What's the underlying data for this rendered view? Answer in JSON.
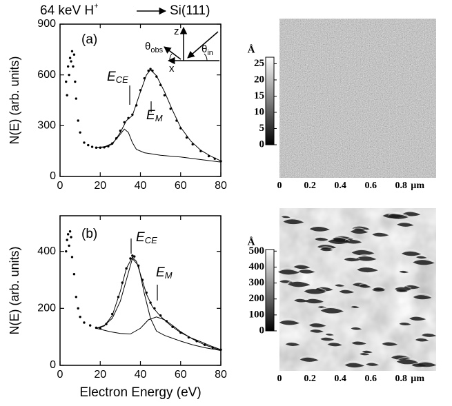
{
  "title": {
    "text": "64 keV H",
    "sup": "+",
    "target": "Si(111)"
  },
  "chart_data": [
    {
      "type": "scatter",
      "ylabel": "N(E) (arb. units)",
      "xlim": [
        0,
        80
      ],
      "xticks": [
        0,
        20,
        40,
        60,
        80
      ],
      "ylim": [
        0,
        900
      ],
      "yticks": [
        0,
        300,
        600,
        900
      ],
      "annotations": [
        {
          "text": "(a)"
        },
        {
          "text": "E",
          "sub": "CE"
        },
        {
          "text": "E",
          "sub": "M"
        },
        {
          "text": "θ",
          "sub": "obs"
        },
        {
          "text": "θ",
          "sub": "in"
        },
        {
          "text": "z"
        },
        {
          "text": "x"
        }
      ],
      "series": [
        {
          "style": "dots",
          "color": "#000",
          "x": [
            3,
            3.5,
            4,
            4.5,
            5,
            5.5,
            6,
            6.5,
            7,
            7.5,
            8,
            9,
            10,
            12,
            14,
            16,
            18,
            20,
            22,
            24,
            26,
            28,
            30,
            32,
            34,
            36,
            38,
            40,
            42,
            44,
            45,
            46,
            48,
            50,
            52,
            55,
            58,
            60,
            63,
            66,
            70,
            74,
            77,
            80
          ],
          "values": [
            560,
            480,
            650,
            600,
            700,
            680,
            740,
            650,
            720,
            560,
            460,
            330,
            260,
            200,
            185,
            175,
            170,
            170,
            172,
            178,
            195,
            225,
            270,
            320,
            345,
            365,
            420,
            510,
            580,
            625,
            635,
            625,
            590,
            540,
            480,
            400,
            330,
            285,
            230,
            190,
            150,
            120,
            105,
            90
          ]
        },
        {
          "style": "line",
          "color": "#000",
          "x": [
            18,
            22,
            26,
            30,
            33,
            36,
            40,
            43,
            45,
            48,
            52,
            56,
            60,
            65,
            70,
            75,
            80
          ],
          "values": [
            172,
            172,
            190,
            260,
            330,
            360,
            500,
            600,
            630,
            595,
            500,
            390,
            290,
            210,
            155,
            120,
            92
          ]
        },
        {
          "style": "line",
          "color": "#000",
          "x": [
            18,
            22,
            26,
            29,
            32,
            34,
            36,
            38,
            42,
            50,
            60,
            70,
            80
          ],
          "values": [
            172,
            175,
            195,
            235,
            280,
            260,
            200,
            160,
            140,
            125,
            115,
            100,
            85
          ]
        }
      ]
    },
    {
      "type": "scatter",
      "ylabel": "N(E) (arb. units)",
      "xlabel": "Electron Energy (eV)",
      "xlim": [
        0,
        80
      ],
      "xticks": [
        0,
        20,
        40,
        60,
        80
      ],
      "ylim": [
        0,
        525
      ],
      "yticks": [
        0,
        200,
        400
      ],
      "annotations": [
        {
          "text": "(b)"
        },
        {
          "text": "E",
          "sub": "CE"
        },
        {
          "text": "E",
          "sub": "M"
        }
      ],
      "series": [
        {
          "style": "dots",
          "color": "#000",
          "x": [
            3,
            3.5,
            4,
            4.5,
            5,
            5.5,
            6,
            7,
            8,
            9,
            10,
            12,
            15,
            18,
            20,
            23,
            26,
            29,
            31,
            33,
            35,
            36,
            37,
            39,
            41,
            43,
            45,
            47,
            50,
            53,
            56,
            60,
            64,
            68,
            72,
            76,
            80
          ],
          "values": [
            400,
            440,
            460,
            420,
            470,
            450,
            380,
            320,
            240,
            200,
            170,
            150,
            140,
            132,
            130,
            145,
            180,
            240,
            290,
            340,
            375,
            385,
            382,
            350,
            300,
            255,
            220,
            200,
            175,
            155,
            135,
            115,
            98,
            85,
            72,
            62,
            55
          ]
        },
        {
          "style": "line",
          "color": "#000",
          "x": [
            18,
            22,
            26,
            30,
            33,
            36,
            38,
            40,
            43,
            46,
            50,
            55,
            60,
            65,
            70,
            75,
            80
          ],
          "values": [
            130,
            138,
            175,
            260,
            340,
            380,
            365,
            320,
            250,
            205,
            172,
            140,
            115,
            97,
            83,
            68,
            55
          ]
        },
        {
          "style": "line",
          "color": "#000",
          "x": [
            18,
            22,
            26,
            30,
            33,
            36,
            39,
            42,
            45,
            48,
            52,
            56,
            60,
            66,
            72,
            80
          ],
          "values": [
            130,
            140,
            165,
            225,
            300,
            375,
            350,
            250,
            165,
            120,
            105,
            95,
            85,
            72,
            62,
            52
          ]
        },
        {
          "style": "line",
          "color": "#000",
          "x": [
            18,
            25,
            30,
            35,
            40,
            44,
            48,
            52,
            56,
            60,
            66,
            72,
            80
          ],
          "values": [
            130,
            118,
            112,
            110,
            130,
            160,
            170,
            160,
            140,
            118,
            92,
            72,
            52
          ]
        }
      ]
    }
  ],
  "afm_panels": [
    {
      "xlim": [
        0,
        1.03
      ],
      "xticks": [
        0,
        0.2,
        0.4,
        0.6,
        0.8
      ],
      "unit": "µm",
      "colorbar_unit": "Å",
      "colorbar_lim": [
        0,
        27
      ],
      "colorbar_ticks": [
        0,
        5,
        10,
        15,
        20,
        25
      ]
    },
    {
      "xlim": [
        0,
        1.03
      ],
      "xticks": [
        0,
        0.2,
        0.4,
        0.6,
        0.8
      ],
      "unit": "µm",
      "colorbar_unit": "Å",
      "colorbar_lim": [
        0,
        510
      ],
      "colorbar_ticks": [
        0,
        100,
        200,
        300,
        400,
        500
      ]
    }
  ]
}
